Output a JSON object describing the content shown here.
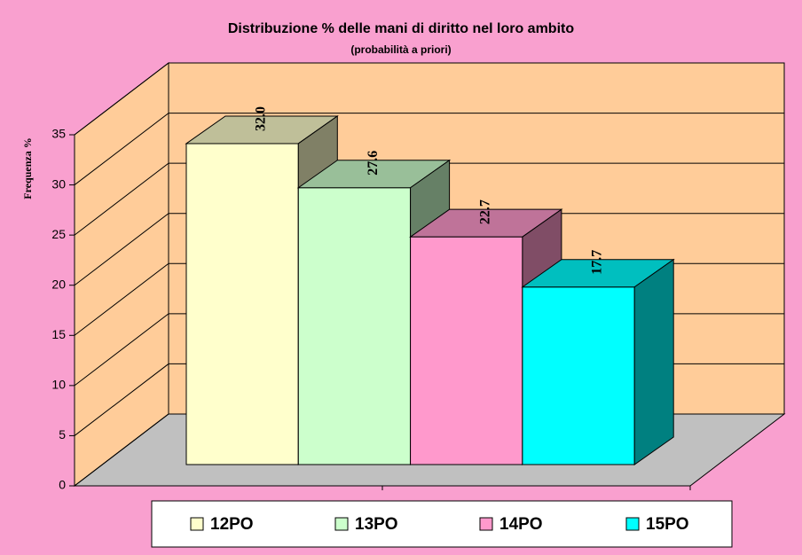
{
  "chart_data": {
    "type": "bar3d",
    "title": "Distribuzione % delle mani di diritto nel loro ambito",
    "subtitle": "(probabilità a priori)",
    "y_label": "Frequenza %",
    "categories": [
      "12PO",
      "13PO",
      "14PO",
      "15PO"
    ],
    "values": [
      32.0,
      27.6,
      22.7,
      17.7
    ],
    "value_labels": [
      "32.0",
      "27.6",
      "22.7",
      "17.7"
    ],
    "colors": [
      "#FFFFCC",
      "#CCFFCC",
      "#FF99CC",
      "#00FFFF"
    ],
    "ylim": [
      0,
      35
    ],
    "yticks": [
      0,
      5,
      10,
      15,
      20,
      25,
      30,
      35
    ],
    "grid": true
  }
}
